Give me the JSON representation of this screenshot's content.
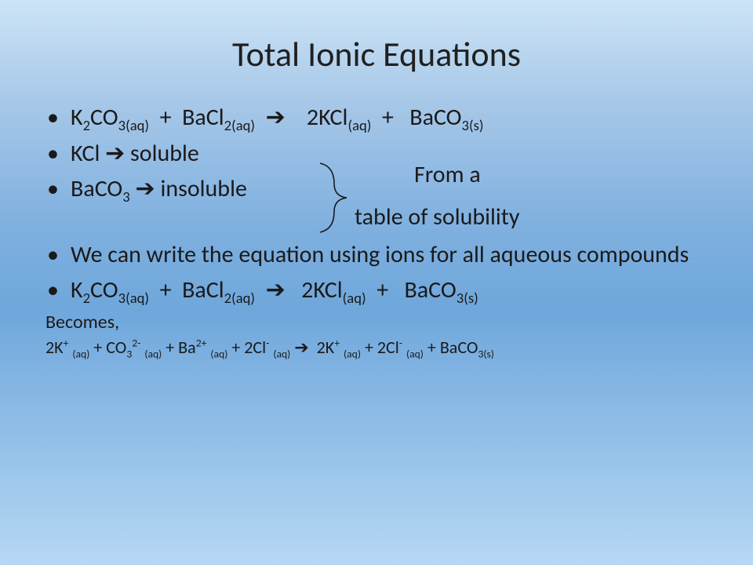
{
  "background": {
    "gradient_stops": [
      "#cde4f6",
      "#a7c8e8",
      "#7fb0df",
      "#6fa7dc",
      "#b6d8f4"
    ]
  },
  "title": "Total Ionic Equations",
  "title_fontsize": 44,
  "body_fontsize": 30,
  "small_fontsize": 24,
  "ionic_fontsize": 22,
  "text_color": "#1a1a1a",
  "bracket_color": "#1a1a1a",
  "bullets": {
    "b1_html": "K<sub>2</sub>CO<sub>3(aq)</sub> &nbsp;+&nbsp; BaCl<sub>2(aq)</sub> &nbsp;<span class='arrow'>&#x2794;</span>&nbsp;&nbsp;&nbsp; 2KCl<sub>(aq)</sub> &nbsp;+ &nbsp; BaCO<sub>3(s)</sub>",
    "b2_html": "KCl <span class='arrow'>&#x2794;</span> soluble",
    "b3_html": "BaCO<sub>3</sub> <span class='arrow'>&#x2794;</span> insoluble",
    "b4_html": "We can write the equation using ions for all aqueous compounds",
    "b5_html": "K<sub>2</sub>CO<sub>3(aq)</sub> &nbsp;+&nbsp; BaCl<sub>2(aq)</sub> &nbsp;<span class='arrow'>&#x2794;</span>&nbsp;&nbsp; 2KCl<sub>(aq)</sub> &nbsp;+ &nbsp; BaCO<sub>3(s)</sub>"
  },
  "annotation": {
    "from": "From a",
    "table": "table of solubility"
  },
  "becomes": "Becomes,",
  "ionic_html": "2K<sup>+</sup> <sub>(aq)</sub> + CO<sub>3</sub><sup>2-</sup> <sub>(aq)</sub> + Ba<sup>2+</sup> <sub>(aq)</sub> + 2Cl<sup>-</sup> <sub>(aq)</sub> <span class='arrow'>&#x2794;</span>&nbsp; 2K<sup>+</sup> <sub>(aq)</sub> + 2Cl<sup>-</sup> <sub>(aq)</sub> + BaCO<sub>3(s)</sub>"
}
